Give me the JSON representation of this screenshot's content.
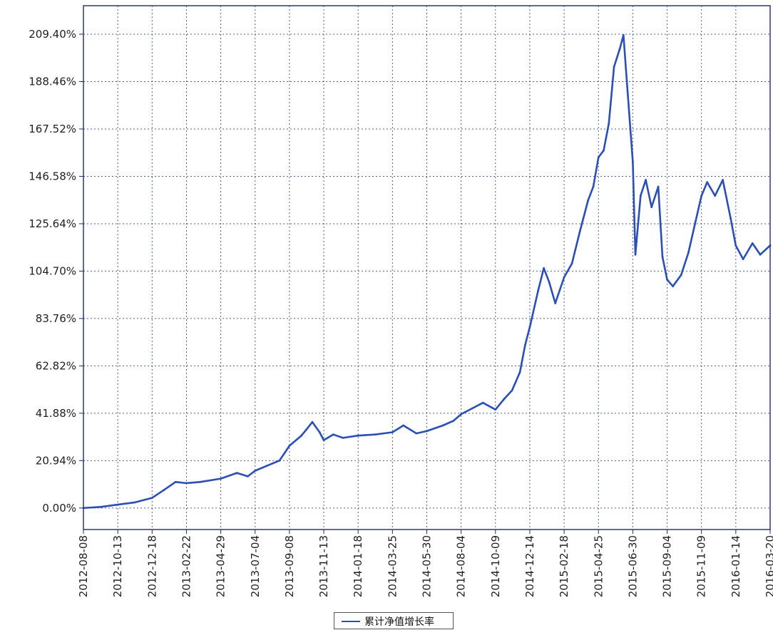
{
  "chart_data": {
    "type": "line",
    "title": "",
    "xlabel": "",
    "ylabel": "",
    "y_ticks": [
      "0.00%",
      "20.94%",
      "41.88%",
      "62.82%",
      "83.76%",
      "104.70%",
      "125.64%",
      "146.58%",
      "167.52%",
      "188.46%",
      "209.40%"
    ],
    "ylim": [
      -9.5,
      222.0
    ],
    "x_ticks": [
      "2012-08-08",
      "2012-10-13",
      "2012-12-18",
      "2013-02-22",
      "2013-04-29",
      "2013-07-04",
      "2013-09-08",
      "2013-11-13",
      "2014-01-18",
      "2014-03-25",
      "2014-05-30",
      "2014-08-04",
      "2014-10-09",
      "2014-12-14",
      "2015-02-18",
      "2015-04-25",
      "2015-06-30",
      "2015-09-04",
      "2015-11-09",
      "2016-01-14",
      "2016-03-20"
    ],
    "xlim": [
      "2012-08-08",
      "2016-03-20"
    ],
    "grid": true,
    "legend": {
      "position": "bottom-center",
      "entries": [
        "累计净值增长率"
      ]
    },
    "colors": {
      "series": "#2b4fb5",
      "highlight": "#c0559a",
      "grid": "#1e2a6e"
    },
    "series": [
      {
        "name": "累计净值增长率",
        "unit": "%",
        "points": [
          [
            "2012-08-08",
            0.0
          ],
          [
            "2012-09-10",
            0.5
          ],
          [
            "2012-10-13",
            1.5
          ],
          [
            "2012-11-15",
            2.5
          ],
          [
            "2012-12-18",
            4.5
          ],
          [
            "2013-01-10",
            8.0
          ],
          [
            "2013-02-01",
            11.5
          ],
          [
            "2013-02-22",
            11.0
          ],
          [
            "2013-03-20",
            11.5
          ],
          [
            "2013-04-29",
            13.0
          ],
          [
            "2013-05-30",
            15.5
          ],
          [
            "2013-06-20",
            14.0
          ],
          [
            "2013-07-04",
            16.5
          ],
          [
            "2013-07-25",
            18.5
          ],
          [
            "2013-08-20",
            21.0
          ],
          [
            "2013-09-08",
            27.5
          ],
          [
            "2013-10-01",
            32.0
          ],
          [
            "2013-10-10",
            34.5
          ],
          [
            "2013-10-22",
            38.0
          ],
          [
            "2013-11-05",
            33.5
          ],
          [
            "2013-11-13",
            30.0
          ],
          [
            "2013-12-01",
            32.5
          ],
          [
            "2013-12-20",
            31.0
          ],
          [
            "2014-01-18",
            32.0
          ],
          [
            "2014-02-20",
            32.5
          ],
          [
            "2014-03-25",
            33.5
          ],
          [
            "2014-04-15",
            36.5
          ],
          [
            "2014-05-10",
            33.0
          ],
          [
            "2014-05-30",
            34.0
          ],
          [
            "2014-06-30",
            36.5
          ],
          [
            "2014-07-20",
            38.5
          ],
          [
            "2014-08-04",
            41.5
          ],
          [
            "2014-08-25",
            44.0
          ],
          [
            "2014-09-15",
            46.5
          ],
          [
            "2014-10-09",
            43.5
          ],
          [
            "2014-10-25",
            48.0
          ],
          [
            "2014-11-10",
            52.0
          ],
          [
            "2014-11-25",
            60.0
          ],
          [
            "2014-12-05",
            72.0
          ],
          [
            "2014-12-14",
            80.0
          ],
          [
            "2014-12-30",
            96.0
          ],
          [
            "2015-01-10",
            106.0
          ],
          [
            "2015-01-20",
            100.0
          ],
          [
            "2015-02-01",
            90.5
          ],
          [
            "2015-02-18",
            102.0
          ],
          [
            "2015-03-05",
            108.0
          ],
          [
            "2015-03-20",
            122.0
          ],
          [
            "2015-04-05",
            136.0
          ],
          [
            "2015-04-15",
            142.0
          ],
          [
            "2015-04-25",
            155.0
          ],
          [
            "2015-05-05",
            158.0
          ],
          [
            "2015-05-15",
            170.0
          ],
          [
            "2015-05-25",
            195.0
          ],
          [
            "2015-06-05",
            203.0
          ],
          [
            "2015-06-12",
            209.0
          ],
          [
            "2015-06-20",
            184.0
          ],
          [
            "2015-06-30",
            153.0
          ],
          [
            "2015-07-05",
            112.0
          ],
          [
            "2015-07-15",
            138.0
          ],
          [
            "2015-07-25",
            145.0
          ],
          [
            "2015-08-05",
            133.0
          ],
          [
            "2015-08-18",
            142.0
          ],
          [
            "2015-08-26",
            111.0
          ],
          [
            "2015-09-04",
            101.0
          ],
          [
            "2015-09-15",
            98.0
          ],
          [
            "2015-10-01",
            103.0
          ],
          [
            "2015-10-15",
            113.0
          ],
          [
            "2015-10-28",
            126.0
          ],
          [
            "2015-11-09",
            138.0
          ],
          [
            "2015-11-20",
            144.0
          ],
          [
            "2015-12-05",
            138.0
          ],
          [
            "2015-12-20",
            145.0
          ],
          [
            "2016-01-04",
            128.0
          ],
          [
            "2016-01-14",
            116.0
          ],
          [
            "2016-01-28",
            110.0
          ],
          [
            "2016-02-15",
            117.0
          ],
          [
            "2016-03-01",
            112.0
          ],
          [
            "2016-03-20",
            116.0
          ]
        ]
      }
    ]
  }
}
